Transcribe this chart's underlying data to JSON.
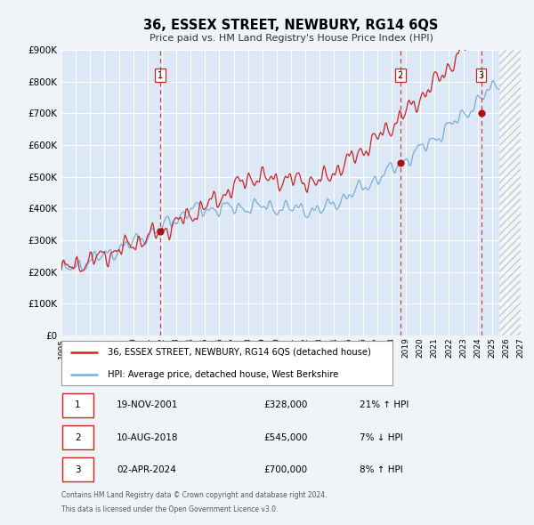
{
  "title": "36, ESSEX STREET, NEWBURY, RG14 6QS",
  "subtitle": "Price paid vs. HM Land Registry's House Price Index (HPI)",
  "xlim_start": 1995.0,
  "xlim_end": 2027.0,
  "ylim_min": 0,
  "ylim_max": 900000,
  "yticks": [
    0,
    100000,
    200000,
    300000,
    400000,
    500000,
    600000,
    700000,
    800000,
    900000
  ],
  "ytick_labels": [
    "£0",
    "£100K",
    "£200K",
    "£300K",
    "£400K",
    "£500K",
    "£600K",
    "£700K",
    "£800K",
    "£900K"
  ],
  "xticks": [
    1995,
    1996,
    1997,
    1998,
    1999,
    2000,
    2001,
    2002,
    2003,
    2004,
    2005,
    2006,
    2007,
    2008,
    2009,
    2010,
    2011,
    2012,
    2013,
    2014,
    2015,
    2016,
    2017,
    2018,
    2019,
    2020,
    2021,
    2022,
    2023,
    2024,
    2025,
    2026,
    2027
  ],
  "plot_bg_color": "#dce8f5",
  "fig_bg_color": "#f0f4f8",
  "grid_color": "#ffffff",
  "red_line_color": "#cc2222",
  "blue_line_color": "#7aadd4",
  "sale_dot_color": "#aa1111",
  "dashed_line_color": "#cc2222",
  "hatch_start": 2025.5,
  "transaction1_date": 2001.89,
  "transaction1_price": 328000,
  "transaction1_label": "1",
  "transaction2_date": 2018.61,
  "transaction2_price": 545000,
  "transaction2_label": "2",
  "transaction3_date": 2024.25,
  "transaction3_price": 700000,
  "transaction3_label": "3",
  "legend_line1": "36, ESSEX STREET, NEWBURY, RG14 6QS (detached house)",
  "legend_line2": "HPI: Average price, detached house, West Berkshire",
  "table_row1_num": "1",
  "table_row1_date": "19-NOV-2001",
  "table_row1_price": "£328,000",
  "table_row1_hpi": "21% ↑ HPI",
  "table_row2_num": "2",
  "table_row2_date": "10-AUG-2018",
  "table_row2_price": "£545,000",
  "table_row2_hpi": "7% ↓ HPI",
  "table_row3_num": "3",
  "table_row3_date": "02-APR-2024",
  "table_row3_price": "£700,000",
  "table_row3_hpi": "8% ↑ HPI",
  "footnote1": "Contains HM Land Registry data © Crown copyright and database right 2024.",
  "footnote2": "This data is licensed under the Open Government Licence v3.0."
}
